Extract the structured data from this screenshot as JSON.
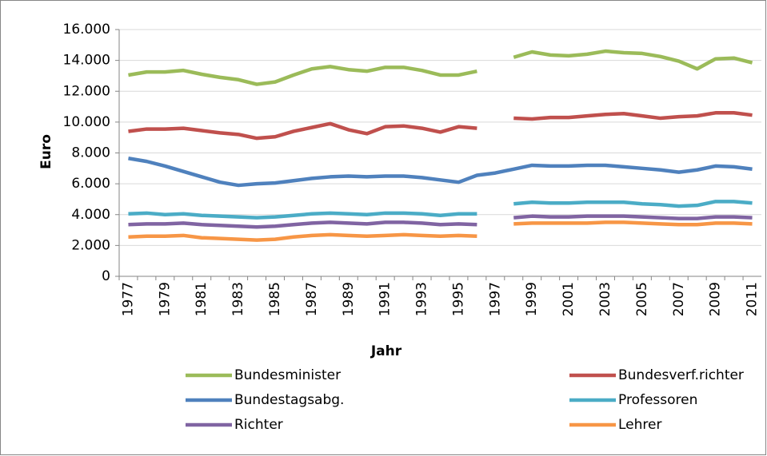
{
  "chart_data": {
    "type": "line",
    "x_label": "Jahr",
    "y_label": "Euro",
    "categories": [
      "1977",
      null,
      "1979",
      null,
      "1981",
      null,
      "1983",
      null,
      "1985",
      null,
      "1987",
      null,
      "1989",
      null,
      "1991",
      null,
      "1993",
      null,
      "1995",
      null,
      "1997",
      null,
      "1999",
      null,
      "2001",
      null,
      "2003",
      null,
      "2005",
      null,
      "2007",
      null,
      "2009",
      null,
      "2011"
    ],
    "ylim": [
      0,
      16000
    ],
    "yticks": [
      0,
      {
        "value": 2000,
        "label": "2.000"
      },
      {
        "value": 4000,
        "label": "4.000"
      },
      {
        "value": 6000,
        "label": "6.000"
      },
      {
        "value": 8000,
        "label": "8.000"
      },
      {
        "value": 10000,
        "label": "10.000"
      },
      {
        "value": 12000,
        "label": "12.000"
      },
      {
        "value": 14000,
        "label": "14.000"
      },
      {
        "value": 16000,
        "label": "16.000"
      }
    ],
    "grid": true,
    "legend": "bottom",
    "series": [
      {
        "name": "Bundesminister",
        "color": "#9bbb59",
        "values": [
          13050,
          13250,
          13250,
          13350,
          13100,
          12900,
          12750,
          12450,
          12600,
          13050,
          13450,
          13600,
          13400,
          13300,
          13550,
          13550,
          13350,
          13050,
          13050,
          13300,
          null,
          14200,
          14550,
          14350,
          14300,
          14400,
          14600,
          14500,
          14450,
          14250,
          13950,
          13450,
          14100,
          14150,
          13850
        ]
      },
      {
        "name": "Bundesverf.richter",
        "color": "#c0504d",
        "values": [
          9400,
          9550,
          9550,
          9600,
          9450,
          9300,
          9200,
          8950,
          9050,
          9400,
          9650,
          9900,
          9500,
          9250,
          9700,
          9750,
          9600,
          9350,
          9700,
          9600,
          null,
          10250,
          10200,
          10300,
          10300,
          10400,
          10500,
          10550,
          10400,
          10250,
          10350,
          10400,
          10600,
          10600,
          10450
        ]
      },
      {
        "name": "Bundestagsabg.",
        "color": "#4f81bd",
        "values": [
          7650,
          7450,
          7150,
          6800,
          6450,
          6100,
          5900,
          6000,
          6050,
          6200,
          6350,
          6450,
          6500,
          6450,
          6500,
          6500,
          6400,
          6250,
          6100,
          6550,
          6700,
          6950,
          7200,
          7150,
          7150,
          7200,
          7200,
          7100,
          7000,
          6900,
          6750,
          6900,
          7150,
          7100,
          6950
        ]
      },
      {
        "name": "Professoren",
        "color": "#4bacc6",
        "values": [
          4050,
          4100,
          4000,
          4050,
          3950,
          3900,
          3850,
          3800,
          3850,
          3950,
          4050,
          4100,
          4050,
          4000,
          4100,
          4100,
          4050,
          3950,
          4050,
          4050,
          null,
          4700,
          4800,
          4750,
          4750,
          4800,
          4800,
          4800,
          4700,
          4650,
          4550,
          4600,
          4850,
          4850,
          4750
        ]
      },
      {
        "name": "Richter",
        "color": "#8064a2",
        "values": [
          3350,
          3400,
          3400,
          3450,
          3350,
          3300,
          3250,
          3200,
          3250,
          3350,
          3450,
          3500,
          3450,
          3400,
          3500,
          3500,
          3450,
          3350,
          3400,
          3350,
          null,
          3800,
          3900,
          3850,
          3850,
          3900,
          3900,
          3900,
          3850,
          3800,
          3750,
          3750,
          3850,
          3850,
          3800
        ]
      },
      {
        "name": "Lehrer",
        "color": "#f79646",
        "values": [
          2550,
          2600,
          2600,
          2650,
          2500,
          2450,
          2400,
          2350,
          2400,
          2550,
          2650,
          2700,
          2650,
          2600,
          2650,
          2700,
          2650,
          2600,
          2650,
          2600,
          null,
          3400,
          3450,
          3450,
          3450,
          3450,
          3500,
          3500,
          3450,
          3400,
          3350,
          3350,
          3450,
          3450,
          3400
        ]
      }
    ]
  }
}
